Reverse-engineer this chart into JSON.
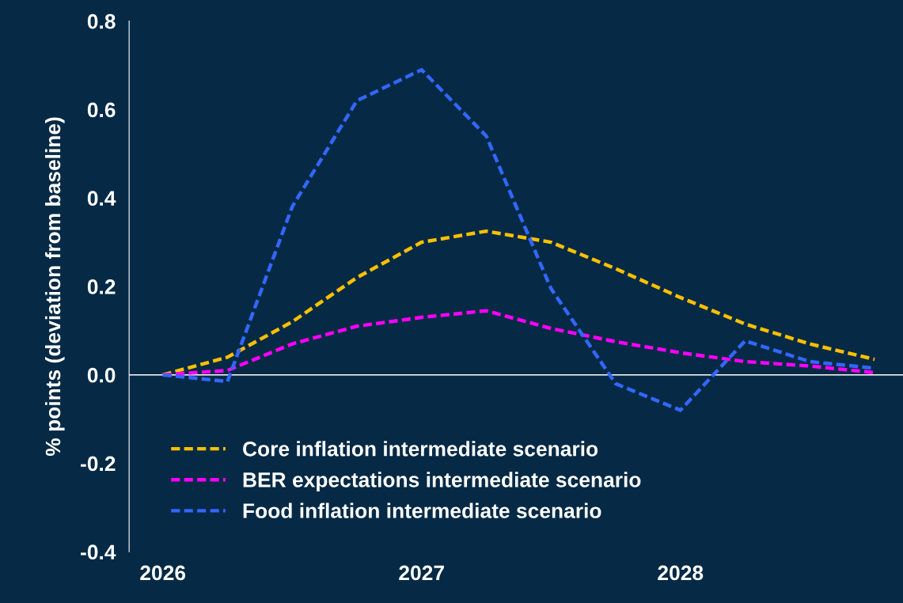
{
  "chart_data": {
    "type": "line",
    "ylabel": "% points (deviation from baseline)",
    "x": [
      2026,
      2026.25,
      2026.5,
      2026.75,
      2027,
      2027.25,
      2027.5,
      2027.75,
      2028,
      2028.25,
      2028.5,
      2028.75
    ],
    "series": [
      {
        "name": "Core inflation intermediate scenario",
        "color": "#ffc000",
        "values": [
          0,
          0.04,
          0.12,
          0.22,
          0.3,
          0.325,
          0.3,
          0.24,
          0.175,
          0.115,
          0.07,
          0.035
        ]
      },
      {
        "name": "BER expectations intermediate scenario",
        "color": "#ff00ff",
        "values": [
          0,
          0.01,
          0.07,
          0.11,
          0.13,
          0.145,
          0.105,
          0.075,
          0.05,
          0.03,
          0.02,
          0.005
        ]
      },
      {
        "name": "Food inflation intermediate scenario",
        "color": "#3366ff",
        "values": [
          0,
          -0.015,
          0.38,
          0.62,
          0.69,
          0.54,
          0.195,
          -0.02,
          -0.08,
          0.077,
          0.03,
          0.015
        ]
      }
    ],
    "xlim": [
      2025.87,
      2028.86
    ],
    "xticks": [
      2026,
      2027,
      2028
    ],
    "ylim": [
      -0.4,
      0.8
    ],
    "yticks": [
      -0.4,
      -0.2,
      {
        "value": 0,
        "label": "0.0"
      },
      0.2,
      0.4,
      0.6,
      0.8
    ],
    "ref_lines": [
      {
        "axis": "y",
        "value": 0,
        "color": "#ffffff"
      }
    ],
    "grid": false,
    "legend": "bottom left",
    "marker": "none",
    "line_style": "dashed"
  }
}
